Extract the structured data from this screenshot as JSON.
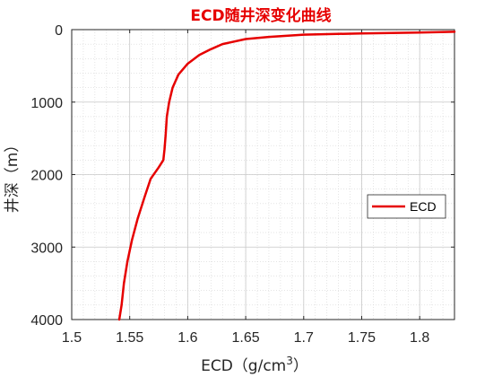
{
  "chart_data": {
    "type": "line",
    "title": "ECD随井深变化曲线",
    "xlabel": "ECD（g/cm",
    "xlabel_sup": "3",
    "xlabel_tail": "）",
    "ylabel": "井深（m）",
    "xlim": [
      1.5,
      1.83
    ],
    "ylim": [
      0,
      4000
    ],
    "y_reversed": true,
    "x_ticks": [
      "1.5",
      "1.55",
      "1.6",
      "1.65",
      "1.7",
      "1.75",
      "1.8"
    ],
    "x_tick_values": [
      1.5,
      1.55,
      1.6,
      1.65,
      1.7,
      1.75,
      1.8
    ],
    "y_ticks": [
      "0",
      "1000",
      "2000",
      "3000",
      "4000"
    ],
    "y_tick_values": [
      0,
      1000,
      2000,
      3000,
      4000
    ],
    "grid": true,
    "minor_grid": true,
    "legend_position": "right",
    "colors": {
      "title": "#e60000",
      "series": "#e60000"
    },
    "series": [
      {
        "name": "ECD",
        "points": [
          [
            1.83,
            30
          ],
          [
            1.8,
            40
          ],
          [
            1.75,
            52
          ],
          [
            1.7,
            70
          ],
          [
            1.67,
            100
          ],
          [
            1.65,
            130
          ],
          [
            1.63,
            200
          ],
          [
            1.62,
            270
          ],
          [
            1.61,
            350
          ],
          [
            1.6,
            470
          ],
          [
            1.592,
            620
          ],
          [
            1.587,
            800
          ],
          [
            1.584,
            1000
          ],
          [
            1.582,
            1200
          ],
          [
            1.581,
            1450
          ],
          [
            1.58,
            1650
          ],
          [
            1.579,
            1800
          ],
          [
            1.575,
            1900
          ],
          [
            1.568,
            2060
          ],
          [
            1.563,
            2300
          ],
          [
            1.557,
            2600
          ],
          [
            1.552,
            2900
          ],
          [
            1.548,
            3200
          ],
          [
            1.545,
            3500
          ],
          [
            1.543,
            3800
          ],
          [
            1.541,
            4000
          ]
        ]
      }
    ]
  }
}
